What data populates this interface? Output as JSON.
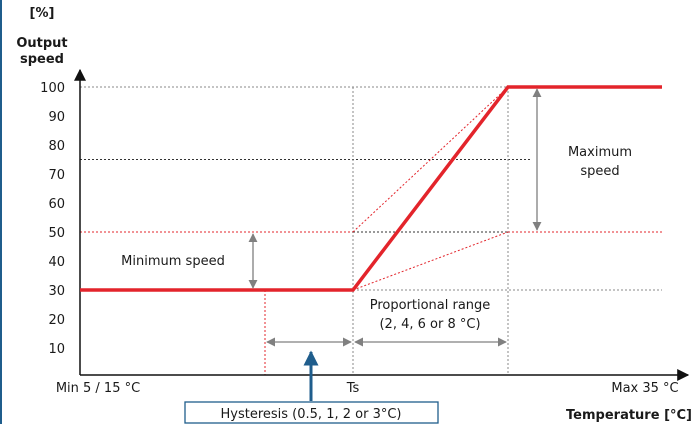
{
  "chart_data": {
    "type": "line",
    "title": "",
    "ylabel_lines": [
      "[%]",
      "Output",
      "speed"
    ],
    "xlabel": "Temperature [°C]",
    "yticks": [
      10,
      20,
      30,
      40,
      50,
      60,
      70,
      80,
      90,
      100
    ],
    "ylim": [
      0,
      100
    ],
    "x_labels": {
      "min": "Min 5 / 15 °C",
      "setpoint": "Ts",
      "max": "Max 35 °C"
    },
    "series": [
      {
        "x": [
          "Min 5 / 15 °C",
          "Ts",
          "Ts + Proportional range",
          "Max 35 °C"
        ],
        "values": [
          30,
          30,
          100,
          100
        ]
      }
    ],
    "annotations": {
      "minimum_speed": "Minimum speed",
      "maximum_speed_lines": [
        "Maximum",
        "speed"
      ],
      "proportional_range_lines": [
        "Proportional range",
        "(2, 4, 6 or 8 °C)"
      ],
      "hysteresis": "Hysteresis (0.5, 1, 2 or 3°C)"
    },
    "reference_levels": [
      30,
      50,
      75,
      100
    ],
    "grid": false,
    "colors": {
      "series": "#e3242b",
      "reference_line": "#e3242b",
      "black_reference": "#333333",
      "arrow": "#808080",
      "hysteresis_arrow": "#1f5d8c",
      "hysteresis_box": "#1f5d8c"
    }
  }
}
